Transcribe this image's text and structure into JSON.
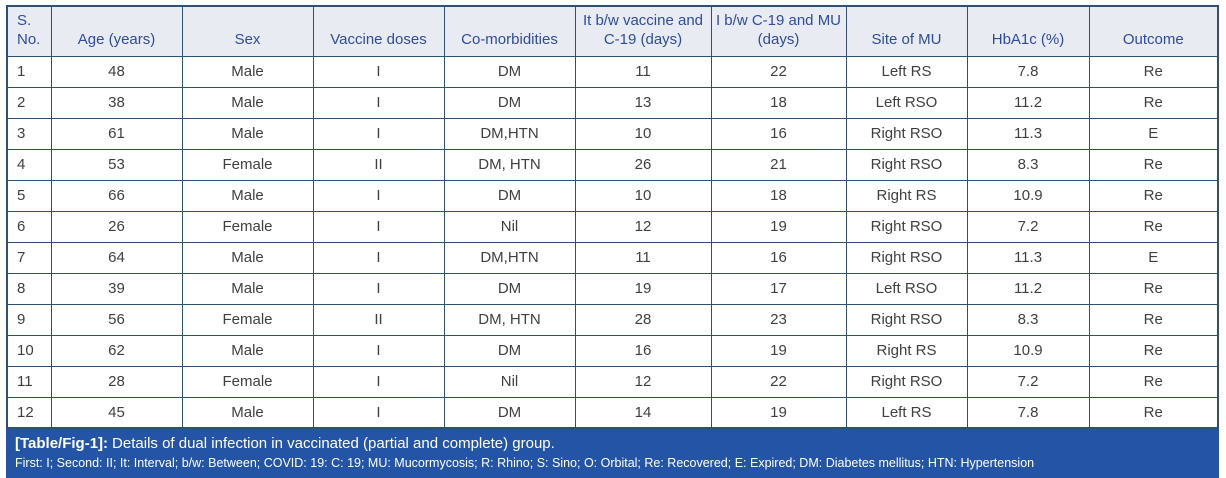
{
  "colors": {
    "grid_border": "#2e5173",
    "header_bg": "#e9ebf3",
    "header_text": "#2e4b9c",
    "caption_bg": "#2454a5",
    "caption_text": "#ffffff",
    "body_text": "#3f3f41"
  },
  "table": {
    "columns": [
      {
        "key": "sno",
        "label": "S. No."
      },
      {
        "key": "age",
        "label": "Age (years)"
      },
      {
        "key": "sex",
        "label": "Sex"
      },
      {
        "key": "vaccine-doses",
        "label": "Vaccine doses"
      },
      {
        "key": "co-morbidities",
        "label": "Co-morbidities"
      },
      {
        "key": "interval-vaccine-c19",
        "label": "It b/w vaccine and C-19 (days)"
      },
      {
        "key": "interval-c19-mu",
        "label": "I b/w C-19 and MU (days)"
      },
      {
        "key": "site-of-mu",
        "label": "Site of MU"
      },
      {
        "key": "hba1c",
        "label": "HbA1c (%)"
      },
      {
        "key": "outcome",
        "label": "Outcome"
      }
    ],
    "rows": [
      [
        "1",
        "48",
        "Male",
        "I",
        "DM",
        "11",
        "22",
        "Left RS",
        "7.8",
        "Re"
      ],
      [
        "2",
        "38",
        "Male",
        "I",
        "DM",
        "13",
        "18",
        "Left RSO",
        "11.2",
        "Re"
      ],
      [
        "3",
        "61",
        "Male",
        "I",
        "DM,HTN",
        "10",
        "16",
        "Right RSO",
        "11.3",
        "E"
      ],
      [
        "4",
        "53",
        "Female",
        "II",
        "DM, HTN",
        "26",
        "21",
        "Right RSO",
        "8.3",
        "Re"
      ],
      [
        "5",
        "66",
        "Male",
        "I",
        "DM",
        "10",
        "18",
        "Right RS",
        "10.9",
        "Re"
      ],
      [
        "6",
        "26",
        "Female",
        "I",
        "Nil",
        "12",
        "19",
        "Right RSO",
        "7.2",
        "Re"
      ],
      [
        "7",
        "64",
        "Male",
        "I",
        "DM,HTN",
        "11",
        "16",
        "Right RSO",
        "11.3",
        "E"
      ],
      [
        "8",
        "39",
        "Male",
        "I",
        "DM",
        "19",
        "17",
        "Left RSO",
        "11.2",
        "Re"
      ],
      [
        "9",
        "56",
        "Female",
        "II",
        "DM, HTN",
        "28",
        "23",
        "Right RSO",
        "8.3",
        "Re"
      ],
      [
        "10",
        "62",
        "Male",
        "I",
        "DM",
        "16",
        "19",
        "Right RS",
        "10.9",
        "Re"
      ],
      [
        "11",
        "28",
        "Female",
        "I",
        "Nil",
        "12",
        "22",
        "Right RSO",
        "7.2",
        "Re"
      ],
      [
        "12",
        "45",
        "Male",
        "I",
        "DM",
        "14",
        "19",
        "Left RS",
        "7.8",
        "Re"
      ]
    ]
  },
  "caption": {
    "tag": "[Table/Fig-1]:",
    "text": "Details of dual infection in vaccinated (partial and complete) group.",
    "footnote": "First: I; Second: II; It: Interval; b/w: Between; COVID: 19: C: 19; MU: Mucormycosis; R: Rhino; S: Sino; O: Orbital; Re: Recovered; E: Expired; DM: Diabetes mellitus; HTN: Hypertension"
  }
}
